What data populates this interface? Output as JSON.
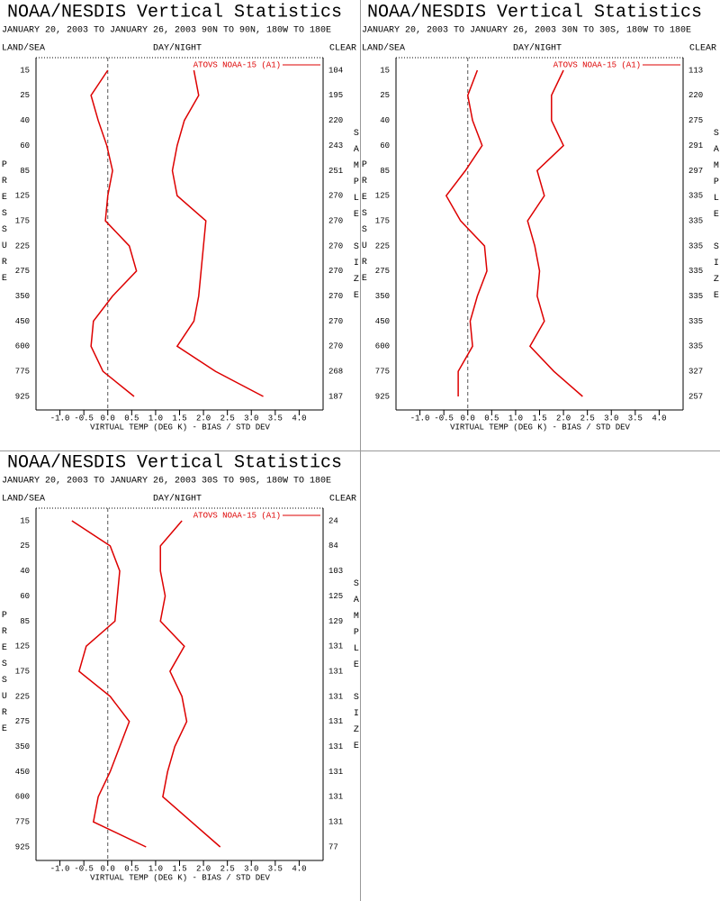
{
  "chart_data": [
    {
      "type": "line",
      "title": "NOAA/NESDIS Vertical Statistics",
      "subtitle": "JANUARY 20, 2003 TO JANUARY 26, 2003 90N TO 90N, 180W TO 180E",
      "land_sea": "LAND/SEA",
      "day_night": "DAY/NIGHT",
      "clear": "CLEAR",
      "y_label": "PRESSURE",
      "y2_label": "SAMPLE SIZE",
      "x_label": "VIRTUAL TEMP (DEG K) - BIAS / STD DEV",
      "categories": [
        "15",
        "25",
        "40",
        "60",
        "85",
        "125",
        "175",
        "225",
        "275",
        "350",
        "450",
        "600",
        "775",
        "925"
      ],
      "sample_sizes": [
        "104",
        "195",
        "220",
        "243",
        "251",
        "270",
        "270",
        "270",
        "270",
        "270",
        "270",
        "270",
        "268",
        "187"
      ],
      "series": [
        {
          "name": "ATOVS NOAA-15 (A1)",
          "color": "#dd0000",
          "values": [
            0.0,
            -0.35,
            -0.2,
            -0.02,
            0.1,
            0.0,
            -0.05,
            0.45,
            0.6,
            0.1,
            -0.3,
            -0.35,
            -0.1,
            0.55
          ],
          "std_dev": [
            1.8,
            1.9,
            1.6,
            1.45,
            1.35,
            1.45,
            2.05,
            2.0,
            1.95,
            1.9,
            1.8,
            1.45,
            2.25,
            3.25
          ]
        }
      ],
      "xlim": [
        -1.5,
        4.5
      ],
      "xticks": [
        {
          "value": -1,
          "label": "-1.0"
        },
        {
          "value": -0.5,
          "label": "-0.5"
        },
        {
          "value": 0,
          "label": "0.0"
        },
        {
          "value": 0.5,
          "label": "0.5"
        },
        {
          "value": 1,
          "label": "1.0"
        },
        {
          "value": 1.5,
          "label": "1.5"
        },
        {
          "value": 2,
          "label": "2.0"
        },
        {
          "value": 2.5,
          "label": "2.5"
        },
        {
          "value": 3,
          "label": "3.0"
        },
        {
          "value": 3.5,
          "label": "3.5"
        },
        {
          "value": 4,
          "label": "4.0"
        }
      ]
    },
    {
      "type": "line",
      "title": "NOAA/NESDIS Vertical Statistics",
      "subtitle": "JANUARY 20, 2003 TO JANUARY 26, 2003 30N TO 30S, 180W TO 180E",
      "land_sea": "LAND/SEA",
      "day_night": "DAY/NIGHT",
      "clear": "CLEAR",
      "y_label": "PRESSURE",
      "y2_label": "SAMPLE SIZE",
      "x_label": "VIRTUAL TEMP (DEG K) - BIAS / STD DEV",
      "categories": [
        "15",
        "25",
        "40",
        "60",
        "85",
        "125",
        "175",
        "225",
        "275",
        "350",
        "450",
        "600",
        "775",
        "925"
      ],
      "sample_sizes": [
        "113",
        "220",
        "275",
        "291",
        "297",
        "335",
        "335",
        "335",
        "335",
        "335",
        "335",
        "335",
        "327",
        "257"
      ],
      "series": [
        {
          "name": "ATOVS NOAA-15 (A1)",
          "color": "#dd0000",
          "values": [
            0.2,
            0.0,
            0.1,
            0.3,
            -0.05,
            -0.45,
            -0.15,
            0.35,
            0.4,
            0.2,
            0.05,
            0.1,
            -0.2,
            -0.2
          ],
          "std_dev": [
            2.0,
            1.75,
            1.75,
            2.0,
            1.45,
            1.6,
            1.25,
            1.4,
            1.5,
            1.45,
            1.6,
            1.3,
            1.8,
            2.4
          ]
        }
      ],
      "xlim": [
        -1.5,
        4.5
      ],
      "xticks": [
        {
          "value": -1,
          "label": "-1.0"
        },
        {
          "value": -0.5,
          "label": "-0.5"
        },
        {
          "value": 0,
          "label": "0.0"
        },
        {
          "value": 0.5,
          "label": "0.5"
        },
        {
          "value": 1,
          "label": "1.0"
        },
        {
          "value": 1.5,
          "label": "1.5"
        },
        {
          "value": 2,
          "label": "2.0"
        },
        {
          "value": 2.5,
          "label": "2.5"
        },
        {
          "value": 3,
          "label": "3.0"
        },
        {
          "value": 3.5,
          "label": "3.5"
        },
        {
          "value": 4,
          "label": "4.0"
        }
      ]
    },
    {
      "type": "line",
      "title": "NOAA/NESDIS Vertical Statistics",
      "subtitle": "JANUARY 20, 2003 TO JANUARY 26, 2003 30S TO 90S, 180W TO 180E",
      "land_sea": "LAND/SEA",
      "day_night": "DAY/NIGHT",
      "clear": "CLEAR",
      "y_label": "PRESSURE",
      "y2_label": "SAMPLE SIZE",
      "x_label": "VIRTUAL TEMP (DEG K) - BIAS / STD DEV",
      "categories": [
        "15",
        "25",
        "40",
        "60",
        "85",
        "125",
        "175",
        "225",
        "275",
        "350",
        "450",
        "600",
        "775",
        "925"
      ],
      "sample_sizes": [
        "24",
        "84",
        "103",
        "125",
        "129",
        "131",
        "131",
        "131",
        "131",
        "131",
        "131",
        "131",
        "131",
        "77"
      ],
      "series": [
        {
          "name": "ATOVS NOAA-15 (A1)",
          "color": "#dd0000",
          "values": [
            -0.75,
            0.05,
            0.25,
            0.2,
            0.15,
            -0.45,
            -0.6,
            0.05,
            0.45,
            0.25,
            0.05,
            -0.2,
            -0.3,
            0.8
          ],
          "std_dev": [
            1.55,
            1.1,
            1.1,
            1.2,
            1.1,
            1.6,
            1.3,
            1.55,
            1.65,
            1.4,
            1.25,
            1.15,
            1.75,
            2.35
          ]
        }
      ],
      "xlim": [
        -1.5,
        4.5
      ],
      "xticks": [
        {
          "value": -1,
          "label": "-1.0"
        },
        {
          "value": -0.5,
          "label": "-0.5"
        },
        {
          "value": 0,
          "label": "0.0"
        },
        {
          "value": 0.5,
          "label": "0.5"
        },
        {
          "value": 1,
          "label": "1.0"
        },
        {
          "value": 1.5,
          "label": "1.5"
        },
        {
          "value": 2,
          "label": "2.0"
        },
        {
          "value": 2.5,
          "label": "2.5"
        },
        {
          "value": 3,
          "label": "3.0"
        },
        {
          "value": 3.5,
          "label": "3.5"
        },
        {
          "value": 4,
          "label": "4.0"
        }
      ]
    }
  ]
}
